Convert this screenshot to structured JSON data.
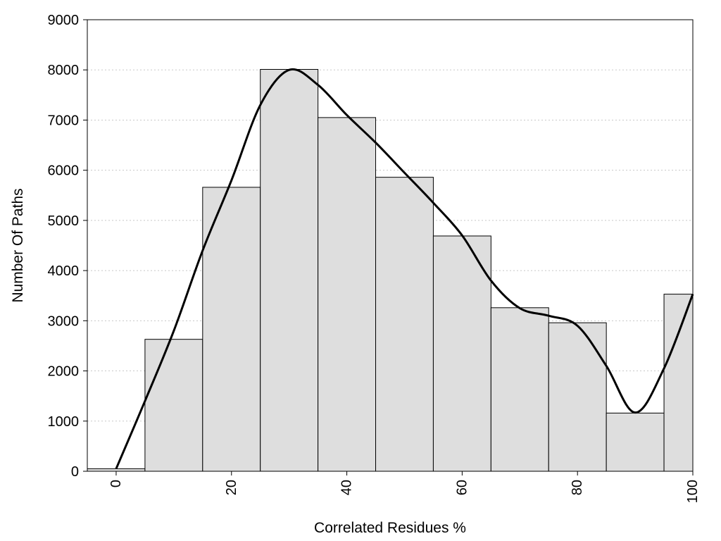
{
  "chart_data": {
    "type": "bar",
    "title": "",
    "xlabel": "Correlated Residues %",
    "ylabel": "Number Of Paths",
    "xlim": [
      -5,
      100
    ],
    "ylim": [
      0,
      9000
    ],
    "xticks": [
      0,
      20,
      40,
      60,
      80,
      100
    ],
    "yticks": [
      0,
      1000,
      2000,
      3000,
      4000,
      5000,
      6000,
      7000,
      8000,
      9000
    ],
    "bin_width": 10,
    "categories": [
      0,
      10,
      20,
      30,
      40,
      50,
      60,
      70,
      80,
      90,
      100
    ],
    "values": [
      50,
      2630,
      5660,
      8010,
      7050,
      5860,
      4690,
      3260,
      2960,
      1160,
      3530
    ],
    "curve": {
      "type": "line",
      "x": [
        0,
        5,
        10,
        15,
        20,
        25,
        30,
        35,
        40,
        45,
        50,
        55,
        60,
        65,
        70,
        75,
        80,
        85,
        90,
        95,
        100
      ],
      "y": [
        50,
        1400,
        2800,
        4400,
        5800,
        7300,
        8000,
        7700,
        7100,
        6550,
        5950,
        5350,
        4700,
        3800,
        3250,
        3100,
        2900,
        2100,
        1170,
        2050,
        3530
      ]
    },
    "grid": "horizontal-dotted",
    "bar_color": "#dedede",
    "line_color": "#000000"
  }
}
